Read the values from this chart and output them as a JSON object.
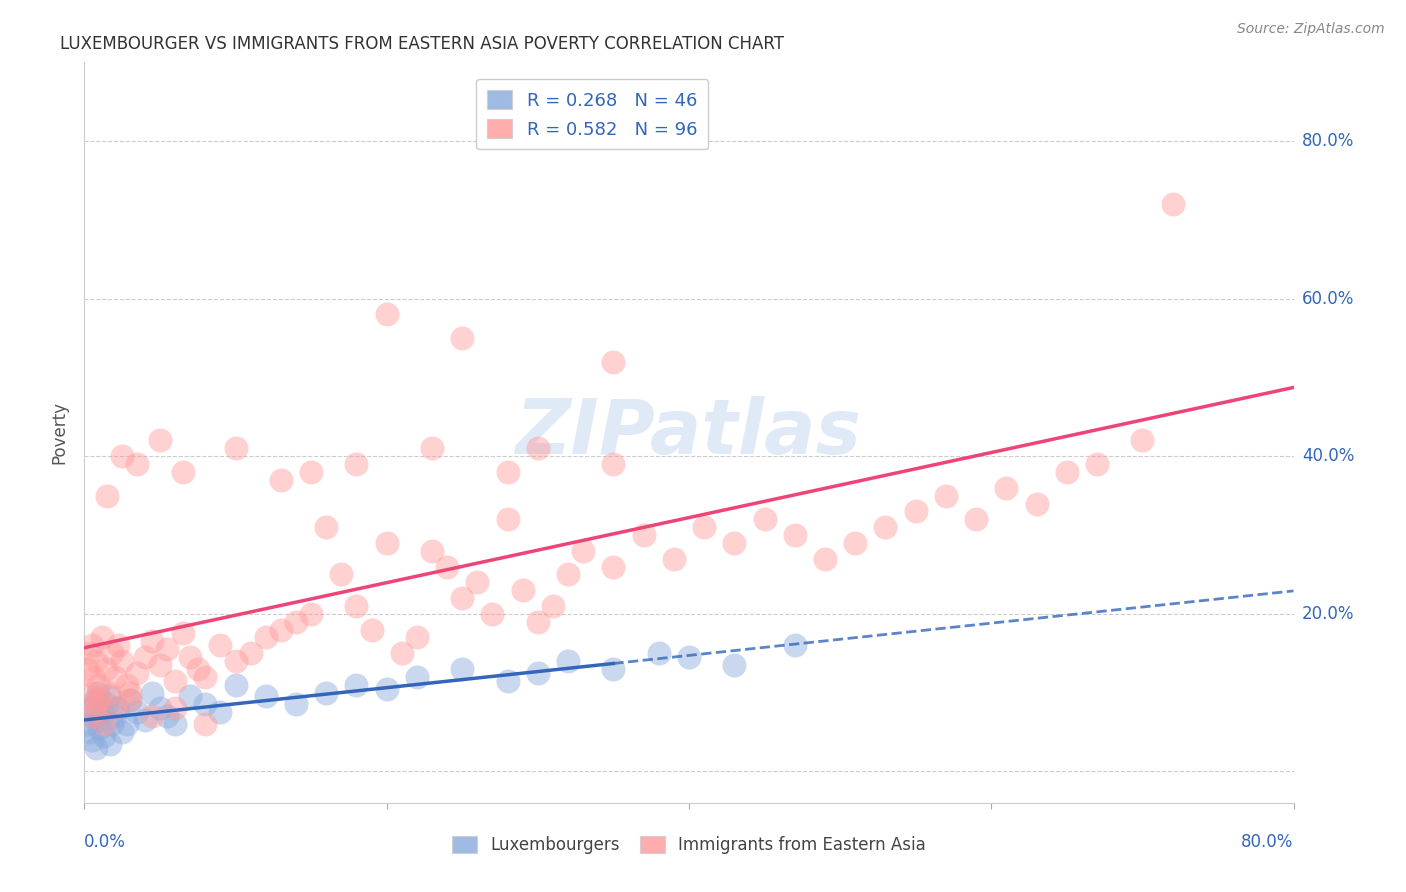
{
  "title": "LUXEMBOURGER VS IMMIGRANTS FROM EASTERN ASIA POVERTY CORRELATION CHART",
  "source": "Source: ZipAtlas.com",
  "ylabel": "Poverty",
  "xlim": [
    0.0,
    0.8
  ],
  "ylim": [
    -0.04,
    0.9
  ],
  "blue_color": "#88AADD",
  "pink_color": "#FF9999",
  "blue_line_color": "#3366BB",
  "pink_line_color": "#EE4477",
  "blue_dashed_color": "#88AADD",
  "background_color": "#FFFFFF",
  "watermark": "ZIPatlas",
  "blue_R": 0.268,
  "blue_N": 46,
  "pink_R": 0.582,
  "pink_N": 96,
  "blue_scatter_x": [
    0.002,
    0.003,
    0.004,
    0.005,
    0.006,
    0.007,
    0.008,
    0.009,
    0.01,
    0.011,
    0.012,
    0.013,
    0.015,
    0.016,
    0.017,
    0.018,
    0.02,
    0.022,
    0.025,
    0.028,
    0.03,
    0.035,
    0.04,
    0.045,
    0.05,
    0.055,
    0.06,
    0.07,
    0.08,
    0.09,
    0.1,
    0.12,
    0.14,
    0.16,
    0.18,
    0.2,
    0.22,
    0.25,
    0.28,
    0.3,
    0.32,
    0.35,
    0.38,
    0.4,
    0.43,
    0.47
  ],
  "blue_scatter_y": [
    0.06,
    0.05,
    0.08,
    0.04,
    0.07,
    0.09,
    0.03,
    0.1,
    0.055,
    0.065,
    0.075,
    0.045,
    0.085,
    0.095,
    0.035,
    0.06,
    0.07,
    0.08,
    0.05,
    0.06,
    0.09,
    0.075,
    0.065,
    0.1,
    0.08,
    0.07,
    0.06,
    0.095,
    0.085,
    0.075,
    0.11,
    0.095,
    0.085,
    0.1,
    0.11,
    0.105,
    0.12,
    0.13,
    0.115,
    0.125,
    0.14,
    0.13,
    0.15,
    0.145,
    0.135,
    0.16
  ],
  "pink_scatter_x": [
    0.002,
    0.003,
    0.004,
    0.005,
    0.006,
    0.007,
    0.008,
    0.009,
    0.01,
    0.012,
    0.014,
    0.016,
    0.018,
    0.02,
    0.022,
    0.025,
    0.028,
    0.03,
    0.035,
    0.04,
    0.045,
    0.05,
    0.055,
    0.06,
    0.065,
    0.07,
    0.075,
    0.08,
    0.09,
    0.1,
    0.11,
    0.12,
    0.13,
    0.14,
    0.15,
    0.16,
    0.17,
    0.18,
    0.19,
    0.2,
    0.21,
    0.22,
    0.23,
    0.24,
    0.25,
    0.26,
    0.27,
    0.28,
    0.29,
    0.3,
    0.31,
    0.32,
    0.33,
    0.35,
    0.37,
    0.39,
    0.41,
    0.43,
    0.45,
    0.47,
    0.49,
    0.51,
    0.53,
    0.55,
    0.57,
    0.59,
    0.61,
    0.63,
    0.65,
    0.67,
    0.7,
    0.72,
    0.025,
    0.05,
    0.1,
    0.15,
    0.2,
    0.25,
    0.3,
    0.35,
    0.015,
    0.035,
    0.065,
    0.13,
    0.18,
    0.23,
    0.28,
    0.35,
    0.005,
    0.008,
    0.013,
    0.02,
    0.03,
    0.045,
    0.06,
    0.08
  ],
  "pink_scatter_y": [
    0.13,
    0.15,
    0.1,
    0.16,
    0.12,
    0.08,
    0.14,
    0.11,
    0.09,
    0.17,
    0.13,
    0.1,
    0.15,
    0.12,
    0.16,
    0.14,
    0.11,
    0.09,
    0.125,
    0.145,
    0.165,
    0.135,
    0.155,
    0.115,
    0.175,
    0.145,
    0.13,
    0.12,
    0.16,
    0.14,
    0.15,
    0.17,
    0.18,
    0.19,
    0.2,
    0.31,
    0.25,
    0.21,
    0.18,
    0.29,
    0.15,
    0.17,
    0.28,
    0.26,
    0.22,
    0.24,
    0.2,
    0.32,
    0.23,
    0.19,
    0.21,
    0.25,
    0.28,
    0.26,
    0.3,
    0.27,
    0.31,
    0.29,
    0.32,
    0.3,
    0.27,
    0.29,
    0.31,
    0.33,
    0.35,
    0.32,
    0.36,
    0.34,
    0.38,
    0.39,
    0.42,
    0.72,
    0.4,
    0.42,
    0.41,
    0.38,
    0.58,
    0.55,
    0.41,
    0.52,
    0.35,
    0.39,
    0.38,
    0.37,
    0.39,
    0.41,
    0.38,
    0.39,
    0.07,
    0.09,
    0.06,
    0.08,
    0.1,
    0.07,
    0.08,
    0.06
  ]
}
